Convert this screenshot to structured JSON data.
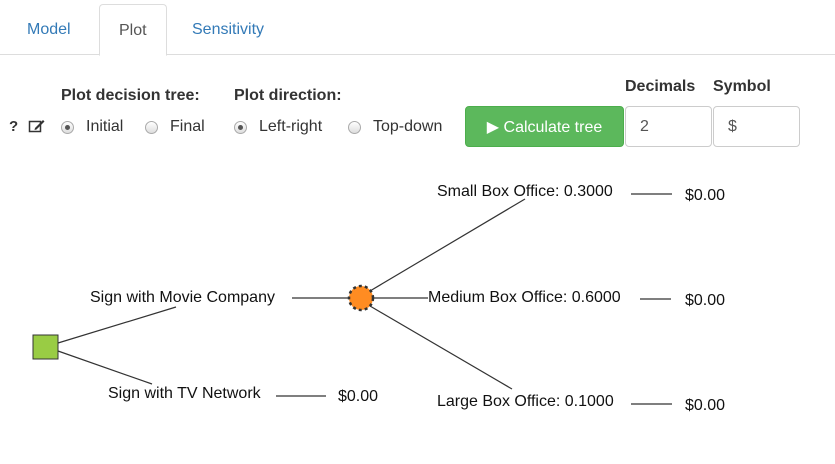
{
  "tabs": [
    {
      "label": "Model"
    },
    {
      "label": "Plot",
      "active": true
    },
    {
      "label": "Sensitivity"
    }
  ],
  "controls": {
    "help_label": "?",
    "plot_tree_label": "Plot decision tree:",
    "plot_tree_options": [
      {
        "label": "Initial",
        "selected": true
      },
      {
        "label": "Final",
        "selected": false
      }
    ],
    "direction_label": "Plot direction:",
    "direction_options": [
      {
        "label": "Left-right",
        "selected": true
      },
      {
        "label": "Top-down",
        "selected": false
      }
    ],
    "calculate_label": "▶ Calculate tree",
    "decimals_label": "Decimals",
    "decimals_value": "2",
    "symbol_label": "Symbol",
    "symbol_value": "$"
  },
  "tree": {
    "decision_color": "#99cc44",
    "chance_color": "#ff8c22",
    "branches": [
      {
        "label": "Sign with Movie Company"
      },
      {
        "label": "Sign with TV Network",
        "payoff": "$0.00"
      }
    ],
    "chance_branches": [
      {
        "label": "Small Box Office: 0.3000",
        "payoff": "$0.00"
      },
      {
        "label": "Medium Box Office: 0.6000",
        "payoff": "$0.00"
      },
      {
        "label": "Large Box Office: 0.1000",
        "payoff": "$0.00"
      }
    ]
  }
}
